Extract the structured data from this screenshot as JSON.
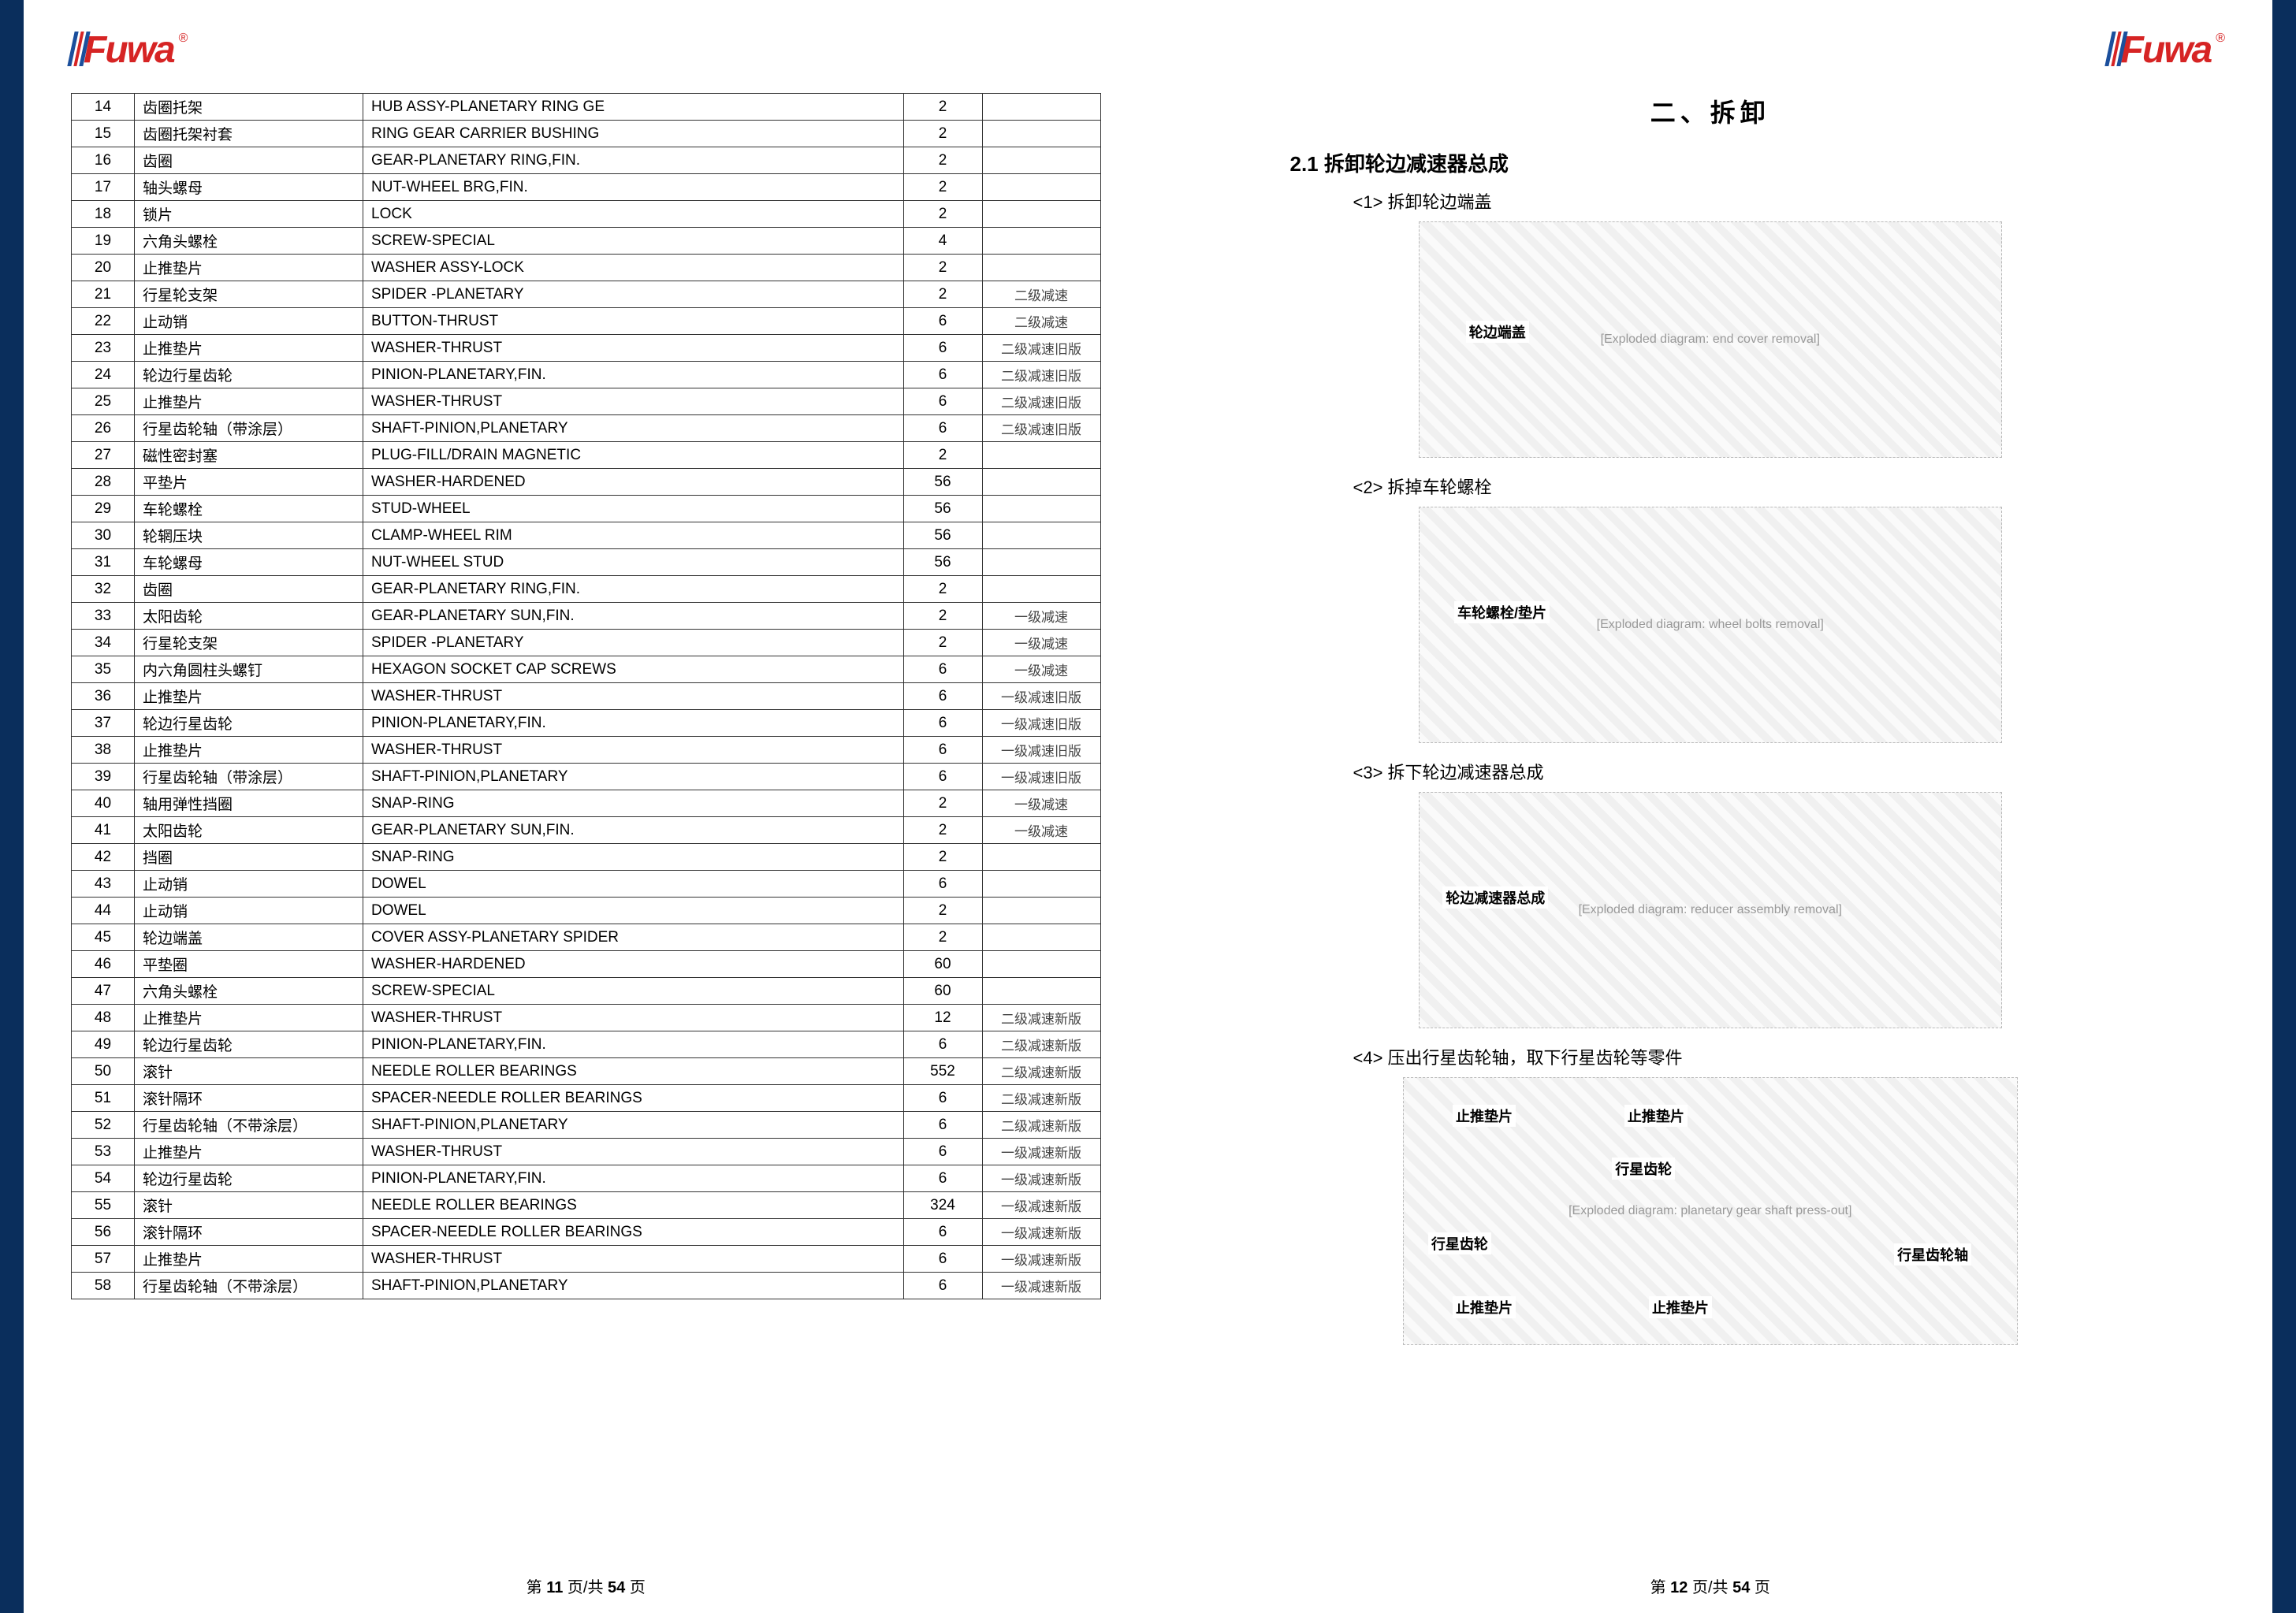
{
  "brand": "Fuwa",
  "brand_trademark": "®",
  "left_page": {
    "table_rows": [
      {
        "n": "14",
        "cn": "齿圈托架",
        "en": "HUB ASSY-PLANETARY RING GE",
        "qty": "2",
        "note": ""
      },
      {
        "n": "15",
        "cn": "齿圈托架衬套",
        "en": "RING GEAR CARRIER BUSHING",
        "qty": "2",
        "note": ""
      },
      {
        "n": "16",
        "cn": "齿圈",
        "en": "GEAR-PLANETARY RING,FIN.",
        "qty": "2",
        "note": ""
      },
      {
        "n": "17",
        "cn": "轴头螺母",
        "en": "NUT-WHEEL BRG,FIN.",
        "qty": "2",
        "note": ""
      },
      {
        "n": "18",
        "cn": "锁片",
        "en": "LOCK",
        "qty": "2",
        "note": ""
      },
      {
        "n": "19",
        "cn": "六角头螺栓",
        "en": "SCREW-SPECIAL",
        "qty": "4",
        "note": ""
      },
      {
        "n": "20",
        "cn": "止推垫片",
        "en": "WASHER ASSY-LOCK",
        "qty": "2",
        "note": ""
      },
      {
        "n": "21",
        "cn": "行星轮支架",
        "en": "SPIDER -PLANETARY",
        "qty": "2",
        "note": "二级减速"
      },
      {
        "n": "22",
        "cn": "止动销",
        "en": "BUTTON-THRUST",
        "qty": "6",
        "note": "二级减速"
      },
      {
        "n": "23",
        "cn": "止推垫片",
        "en": "WASHER-THRUST",
        "qty": "6",
        "note": "二级减速旧版"
      },
      {
        "n": "24",
        "cn": "轮边行星齿轮",
        "en": "PINION-PLANETARY,FIN.",
        "qty": "6",
        "note": "二级减速旧版"
      },
      {
        "n": "25",
        "cn": "止推垫片",
        "en": "WASHER-THRUST",
        "qty": "6",
        "note": "二级减速旧版"
      },
      {
        "n": "26",
        "cn": "行星齿轮轴（带涂层）",
        "en": "SHAFT-PINION,PLANETARY",
        "qty": "6",
        "note": "二级减速旧版"
      },
      {
        "n": "27",
        "cn": "磁性密封塞",
        "en": "PLUG-FILL/DRAIN MAGNETIC",
        "qty": "2",
        "note": ""
      },
      {
        "n": "28",
        "cn": "平垫片",
        "en": "WASHER-HARDENED",
        "qty": "56",
        "note": ""
      },
      {
        "n": "29",
        "cn": "车轮螺栓",
        "en": "STUD-WHEEL",
        "qty": "56",
        "note": ""
      },
      {
        "n": "30",
        "cn": "轮辋压块",
        "en": "CLAMP-WHEEL RIM",
        "qty": "56",
        "note": ""
      },
      {
        "n": "31",
        "cn": "车轮螺母",
        "en": "NUT-WHEEL STUD",
        "qty": "56",
        "note": ""
      },
      {
        "n": "32",
        "cn": "齿圈",
        "en": "GEAR-PLANETARY RING,FIN.",
        "qty": "2",
        "note": ""
      },
      {
        "n": "33",
        "cn": "太阳齿轮",
        "en": "GEAR-PLANETARY SUN,FIN.",
        "qty": "2",
        "note": "一级减速"
      },
      {
        "n": "34",
        "cn": "行星轮支架",
        "en": "SPIDER -PLANETARY",
        "qty": "2",
        "note": "一级减速"
      },
      {
        "n": "35",
        "cn": "内六角圆柱头螺钉",
        "en": "HEXAGON SOCKET CAP SCREWS",
        "qty": "6",
        "note": "一级减速"
      },
      {
        "n": "36",
        "cn": "止推垫片",
        "en": "WASHER-THRUST",
        "qty": "6",
        "note": "一级减速旧版"
      },
      {
        "n": "37",
        "cn": "轮边行星齿轮",
        "en": "PINION-PLANETARY,FIN.",
        "qty": "6",
        "note": "一级减速旧版"
      },
      {
        "n": "38",
        "cn": "止推垫片",
        "en": "WASHER-THRUST",
        "qty": "6",
        "note": "一级减速旧版"
      },
      {
        "n": "39",
        "cn": "行星齿轮轴（带涂层）",
        "en": "SHAFT-PINION,PLANETARY",
        "qty": "6",
        "note": "一级减速旧版"
      },
      {
        "n": "40",
        "cn": "轴用弹性挡圈",
        "en": "SNAP-RING",
        "qty": "2",
        "note": "一级减速"
      },
      {
        "n": "41",
        "cn": "太阳齿轮",
        "en": "GEAR-PLANETARY SUN,FIN.",
        "qty": "2",
        "note": "一级减速"
      },
      {
        "n": "42",
        "cn": "挡圈",
        "en": "SNAP-RING",
        "qty": "2",
        "note": ""
      },
      {
        "n": "43",
        "cn": "止动销",
        "en": "DOWEL",
        "qty": "6",
        "note": ""
      },
      {
        "n": "44",
        "cn": "止动销",
        "en": "DOWEL",
        "qty": "2",
        "note": ""
      },
      {
        "n": "45",
        "cn": "轮边端盖",
        "en": "COVER ASSY-PLANETARY SPIDER",
        "qty": "2",
        "note": ""
      },
      {
        "n": "46",
        "cn": "平垫圈",
        "en": "WASHER-HARDENED",
        "qty": "60",
        "note": ""
      },
      {
        "n": "47",
        "cn": "六角头螺栓",
        "en": "SCREW-SPECIAL",
        "qty": "60",
        "note": ""
      },
      {
        "n": "48",
        "cn": "止推垫片",
        "en": "WASHER-THRUST",
        "qty": "12",
        "note": "二级减速新版"
      },
      {
        "n": "49",
        "cn": "轮边行星齿轮",
        "en": "PINION-PLANETARY,FIN.",
        "qty": "6",
        "note": "二级减速新版"
      },
      {
        "n": "50",
        "cn": "滚针",
        "en": "NEEDLE ROLLER BEARINGS",
        "qty": "552",
        "note": "二级减速新版"
      },
      {
        "n": "51",
        "cn": "滚针隔环",
        "en": "SPACER-NEEDLE ROLLER BEARINGS",
        "qty": "6",
        "note": "二级减速新版"
      },
      {
        "n": "52",
        "cn": "行星齿轮轴（不带涂层）",
        "en": "SHAFT-PINION,PLANETARY",
        "qty": "6",
        "note": "二级减速新版"
      },
      {
        "n": "53",
        "cn": "止推垫片",
        "en": "WASHER-THRUST",
        "qty": "6",
        "note": "一级减速新版"
      },
      {
        "n": "54",
        "cn": "轮边行星齿轮",
        "en": "PINION-PLANETARY,FIN.",
        "qty": "6",
        "note": "一级减速新版"
      },
      {
        "n": "55",
        "cn": "滚针",
        "en": "NEEDLE ROLLER BEARINGS",
        "qty": "324",
        "note": "一级减速新版"
      },
      {
        "n": "56",
        "cn": "滚针隔环",
        "en": "SPACER-NEEDLE ROLLER BEARINGS",
        "qty": "6",
        "note": "一级减速新版"
      },
      {
        "n": "57",
        "cn": "止推垫片",
        "en": "WASHER-THRUST",
        "qty": "6",
        "note": "一级减速新版"
      },
      {
        "n": "58",
        "cn": "行星齿轮轴（不带涂层）",
        "en": "SHAFT-PINION,PLANETARY",
        "qty": "6",
        "note": "一级减速新版"
      }
    ],
    "footer": {
      "prefix": "第 ",
      "cur": "11",
      "mid": " 页/共 ",
      "total": "54",
      "suffix": " 页"
    }
  },
  "right_page": {
    "section_title": "二、拆卸",
    "subsection": "2.1 拆卸轮边减速器总成",
    "steps": [
      {
        "label": "<1> 拆卸轮边端盖",
        "callouts": [
          "轮边端盖"
        ],
        "ph": "[Exploded diagram: end cover removal]"
      },
      {
        "label": "<2> 拆掉车轮螺栓",
        "callouts": [
          "车轮螺栓/垫片"
        ],
        "ph": "[Exploded diagram: wheel bolts removal]"
      },
      {
        "label": "<3> 拆下轮边减速器总成",
        "callouts": [
          "轮边减速器总成"
        ],
        "ph": "[Exploded diagram: reducer assembly removal]"
      },
      {
        "label": "<4> 压出行星齿轮轴，取下行星齿轮等零件",
        "callouts": [
          "止推垫片",
          "止推垫片",
          "行星齿轮",
          "行星齿轮",
          "止推垫片",
          "止推垫片",
          "行星齿轮轴"
        ],
        "ph": "[Exploded diagram: planetary gear shaft press-out]"
      }
    ],
    "footer": {
      "prefix": "第 ",
      "cur": "12",
      "mid": " 页/共 ",
      "total": "54",
      "suffix": " 页"
    }
  },
  "colors": {
    "edge": "#0a2e5c",
    "brand_red": "#d62424",
    "brand_blue": "#1b4f9c",
    "border": "#333333"
  }
}
